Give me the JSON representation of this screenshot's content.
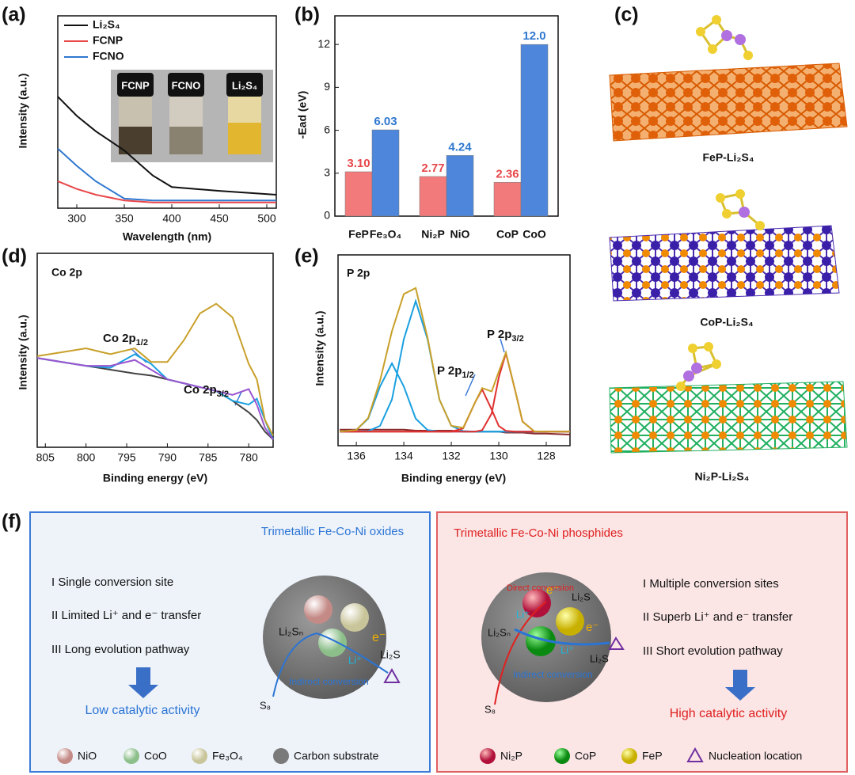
{
  "panel_labels": [
    "(a)",
    "(b)",
    "(c)",
    "(d)",
    "(e)",
    "(f)"
  ],
  "chart_data": [
    {
      "type": "line",
      "xlabel": "Wavelength (nm)",
      "ylabel": "Intensity (a.u.)",
      "x": [
        280,
        300,
        320,
        350,
        380,
        400,
        450,
        510
      ],
      "xlim": [
        280,
        510
      ],
      "xticks": [
        300,
        350,
        400,
        450,
        500
      ],
      "ylim": [
        0,
        100
      ],
      "legend": "upper left",
      "series": [
        {
          "name": "Li₂S₄",
          "color": "#111111",
          "values": [
            58,
            48,
            40,
            30,
            17,
            11,
            9,
            7
          ]
        },
        {
          "name": "FCNP",
          "color": "#e8474a",
          "values": [
            14,
            10,
            7,
            4,
            3,
            3,
            3,
            3
          ]
        },
        {
          "name": "FCNO",
          "color": "#2f78d0",
          "values": [
            31,
            22,
            14,
            5,
            4,
            4,
            4,
            4
          ]
        }
      ],
      "inset_labels": [
        "FCNP",
        "FCNO",
        "Li₂S₄"
      ]
    },
    {
      "type": "bar",
      "ylabel": "-Ead (eV)",
      "ylim": [
        0,
        14
      ],
      "yticks": [
        0,
        3,
        6,
        9,
        12
      ],
      "series": [
        {
          "color": "#f27a7a",
          "label_color": "#e8474a",
          "labels": [
            "FeP",
            "Ni₂P",
            "CoP"
          ],
          "values": [
            3.1,
            2.77,
            2.36
          ],
          "value_labels": [
            "3.10",
            "2.77",
            "2.36"
          ]
        },
        {
          "color": "#4d86db",
          "label_color": "#2f78d0",
          "labels": [
            "Fe₃O₄",
            "NiO",
            "CoO"
          ],
          "values": [
            6.03,
            4.24,
            12.0
          ],
          "value_labels": [
            "6.03",
            "4.24",
            "12.0"
          ]
        }
      ]
    },
    {
      "type": "line",
      "xlabel": "Binding energy (eV)",
      "ylabel": "Intensity (a.u.)",
      "title": "Co 2p",
      "x": [
        806,
        803,
        800,
        797,
        794,
        792,
        790,
        788,
        786,
        784,
        782,
        780,
        779,
        778,
        777
      ],
      "xlim": [
        806,
        777
      ],
      "xticks": [
        805,
        800,
        795,
        790,
        785,
        780
      ],
      "ylim": [
        0,
        100
      ],
      "annotations": [
        {
          "text": "Co 2p",
          "sub": "1/2"
        },
        {
          "text": "Co 2p",
          "sub": "3/2"
        }
      ],
      "series": [
        {
          "color": "#444444",
          "values": [
            46,
            44,
            42,
            40,
            38,
            37,
            35,
            33,
            31,
            29,
            24,
            18,
            14,
            8,
            4
          ]
        },
        {
          "color": "#1aa0e0",
          "values": [
            46,
            44,
            42,
            41,
            48,
            43,
            35,
            33,
            31,
            29,
            24,
            22,
            25,
            14,
            4
          ]
        },
        {
          "color": "#9a55d0",
          "values": [
            46,
            44,
            42,
            42,
            45,
            40,
            35,
            33,
            31,
            29,
            27,
            30,
            22,
            10,
            4
          ]
        },
        {
          "color": "#c8a02a",
          "values": [
            47,
            49,
            51,
            48,
            51,
            44,
            44,
            55,
            69,
            74,
            67,
            43,
            35,
            14,
            6
          ]
        }
      ]
    },
    {
      "type": "line",
      "xlabel": "Binding energy (eV)",
      "ylabel": "Intensity (a.u.)",
      "title": "P 2p",
      "x": [
        136.7,
        136,
        135.5,
        135,
        134.5,
        134,
        133.5,
        133,
        132.5,
        132,
        131.5,
        131,
        130.7,
        130.3,
        130,
        129.7,
        129.3,
        129,
        128.5,
        128,
        127
      ],
      "xlim": [
        136.77,
        127
      ],
      "xticks": [
        136,
        134,
        132,
        130,
        128
      ],
      "ylim": [
        0,
        95
      ],
      "annotations": [
        {
          "text": "P 2p",
          "sub": "1/2"
        },
        {
          "text": "P 2p",
          "sub": "3/2"
        }
      ],
      "series": [
        {
          "color": "#8a2a2a",
          "values": [
            8,
            8,
            8,
            8,
            8,
            8,
            7.5,
            7.5,
            7.5,
            7.5,
            7,
            7,
            7,
            7,
            7,
            6.5,
            6.5,
            6.5,
            6,
            6,
            5.5
          ]
        },
        {
          "color": "#1aa0e0",
          "values": [
            7,
            7.8,
            13.5,
            29.5,
            41,
            29.5,
            13.5,
            7.8,
            7,
            7,
            7,
            7,
            7,
            7,
            7,
            7,
            7,
            7,
            7,
            7,
            7
          ]
        },
        {
          "color": "#1aa0e0",
          "values": [
            7,
            7,
            7.3,
            9.9,
            23,
            53,
            72,
            53,
            23,
            9.9,
            7.3,
            7,
            7,
            7,
            7,
            7,
            7,
            7,
            7,
            7,
            7
          ]
        },
        {
          "color": "#e03030",
          "values": [
            7,
            7,
            7,
            7,
            7,
            7,
            7,
            7,
            7,
            7,
            8.6,
            21.5,
            28,
            18,
            9.8,
            7.4,
            7,
            7,
            7,
            7,
            7
          ]
        },
        {
          "color": "#e03030",
          "values": [
            7,
            7,
            7,
            7,
            7,
            7,
            7,
            7,
            7,
            7,
            7,
            7,
            7.7,
            16,
            34,
            46,
            27,
            12,
            7.1,
            7,
            7
          ]
        },
        {
          "color": "#c8a02a",
          "values": [
            7,
            7.8,
            13.8,
            32.4,
            57,
            75.5,
            78.5,
            53.8,
            23,
            9.9,
            8.9,
            21.5,
            28.7,
            27,
            36.8,
            46.4,
            27,
            12,
            7.1,
            7,
            7
          ]
        }
      ]
    }
  ],
  "structures": [
    "FeP-Li₂S₄",
    "CoP-Li₂S₄",
    "Ni₂P-Li₂S₄"
  ],
  "scheme": {
    "left": {
      "title": "Trimetallic Fe-Co-Ni oxides",
      "items": [
        "I Single conversion site",
        "II Limited Li⁺ and e⁻ transfer",
        "III Long evolution pathway"
      ],
      "result": "Low catalytic activity",
      "labels": [
        "Li₂Sₙ",
        "e⁻",
        "Li⁺",
        "Li₂S",
        "Indirect conversion",
        "S₈"
      ],
      "legend": [
        "NiO",
        "CoO",
        "Fe₃O₄",
        "Carbon substrate"
      ]
    },
    "right": {
      "title": "Trimetallic Fe-Co-Ni phosphides",
      "items": [
        "I Multiple conversion sites",
        "II Superb Li⁺ and e⁻ transfer",
        "III Short evolution pathway"
      ],
      "result": "High catalytic activity",
      "labels": [
        "Direct conversion",
        "e⁻",
        "Li₂S",
        "Li⁺",
        "Li₂Sₙ",
        "e⁻",
        "Li⁺",
        "Li₂S",
        "Indirect conversion",
        "S₈"
      ],
      "legend": [
        "Ni₂P",
        "CoP",
        "FeP",
        "Nucleation location"
      ]
    }
  }
}
